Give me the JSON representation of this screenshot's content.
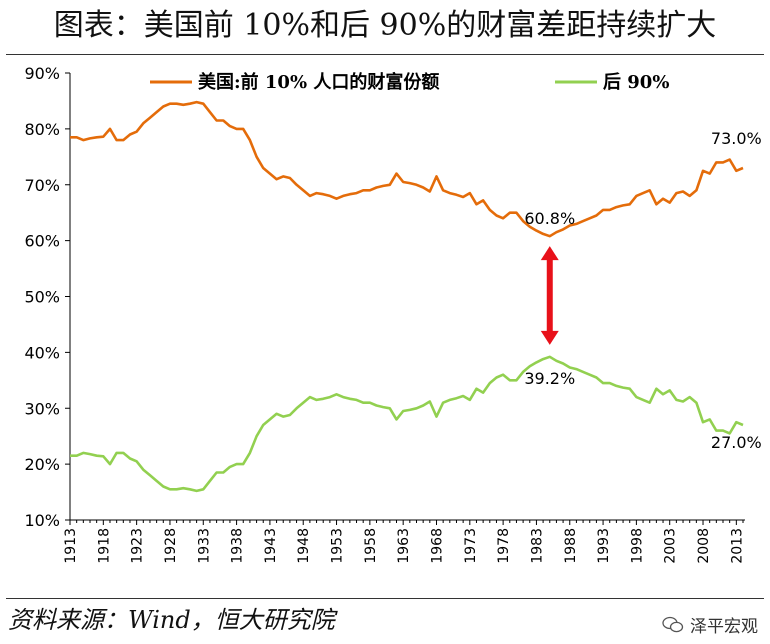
{
  "title": "图表：美国前 10%和后 90%的财富差距持续扩大",
  "source": "资料来源：Wind，恒大研究院",
  "watermark": "泽平宏观",
  "colors": {
    "top10": "#E46C0A",
    "bottom90": "#92D050",
    "arrow": "#E8111A"
  },
  "chart_data": {
    "type": "line",
    "ylim": [
      0.1,
      0.9
    ],
    "y_ticks": [
      "90%",
      "80%",
      "70%",
      "60%",
      "50%",
      "40%",
      "30%",
      "20%",
      "10%"
    ],
    "xlim": [
      1913,
      2014
    ],
    "x_ticks": [
      "1913",
      "1918",
      "1923",
      "1928",
      "1933",
      "1938",
      "1943",
      "1948",
      "1953",
      "1958",
      "1963",
      "1968",
      "1973",
      "1978",
      "1983",
      "1988",
      "1993",
      "1998",
      "2003",
      "2008",
      "2013"
    ],
    "legend_position": "top",
    "series": [
      {
        "name": "美国:前 10% 人口的财富份额",
        "color": "#E46C0A",
        "points": [
          [
            1913,
            0.785
          ],
          [
            1914,
            0.785
          ],
          [
            1915,
            0.78
          ],
          [
            1916,
            0.783
          ],
          [
            1917,
            0.785
          ],
          [
            1918,
            0.786
          ],
          [
            1919,
            0.8
          ],
          [
            1920,
            0.78
          ],
          [
            1921,
            0.78
          ],
          [
            1922,
            0.79
          ],
          [
            1923,
            0.795
          ],
          [
            1924,
            0.81
          ],
          [
            1925,
            0.82
          ],
          [
            1926,
            0.83
          ],
          [
            1927,
            0.84
          ],
          [
            1928,
            0.845
          ],
          [
            1929,
            0.845
          ],
          [
            1930,
            0.843
          ],
          [
            1931,
            0.845
          ],
          [
            1932,
            0.848
          ],
          [
            1933,
            0.845
          ],
          [
            1934,
            0.83
          ],
          [
            1935,
            0.815
          ],
          [
            1936,
            0.815
          ],
          [
            1937,
            0.805
          ],
          [
            1938,
            0.8
          ],
          [
            1939,
            0.8
          ],
          [
            1940,
            0.78
          ],
          [
            1941,
            0.75
          ],
          [
            1942,
            0.73
          ],
          [
            1943,
            0.72
          ],
          [
            1944,
            0.71
          ],
          [
            1945,
            0.715
          ],
          [
            1946,
            0.712
          ],
          [
            1947,
            0.7
          ],
          [
            1948,
            0.69
          ],
          [
            1949,
            0.68
          ],
          [
            1950,
            0.685
          ],
          [
            1951,
            0.683
          ],
          [
            1952,
            0.68
          ],
          [
            1953,
            0.675
          ],
          [
            1954,
            0.68
          ],
          [
            1955,
            0.683
          ],
          [
            1956,
            0.685
          ],
          [
            1957,
            0.69
          ],
          [
            1958,
            0.69
          ],
          [
            1959,
            0.695
          ],
          [
            1960,
            0.698
          ],
          [
            1961,
            0.7
          ],
          [
            1962,
            0.72
          ],
          [
            1963,
            0.705
          ],
          [
            1964,
            0.703
          ],
          [
            1965,
            0.7
          ],
          [
            1966,
            0.695
          ],
          [
            1967,
            0.688
          ],
          [
            1968,
            0.715
          ],
          [
            1969,
            0.69
          ],
          [
            1970,
            0.685
          ],
          [
            1971,
            0.682
          ],
          [
            1972,
            0.678
          ],
          [
            1973,
            0.685
          ],
          [
            1974,
            0.665
          ],
          [
            1975,
            0.672
          ],
          [
            1976,
            0.655
          ],
          [
            1977,
            0.645
          ],
          [
            1978,
            0.64
          ],
          [
            1979,
            0.65
          ],
          [
            1980,
            0.65
          ],
          [
            1981,
            0.635
          ],
          [
            1982,
            0.625
          ],
          [
            1983,
            0.618
          ],
          [
            1984,
            0.612
          ],
          [
            1985,
            0.608
          ],
          [
            1986,
            0.615
          ],
          [
            1987,
            0.62
          ],
          [
            1988,
            0.627
          ],
          [
            1989,
            0.63
          ],
          [
            1990,
            0.635
          ],
          [
            1991,
            0.64
          ],
          [
            1992,
            0.645
          ],
          [
            1993,
            0.655
          ],
          [
            1994,
            0.655
          ],
          [
            1995,
            0.66
          ],
          [
            1996,
            0.663
          ],
          [
            1997,
            0.665
          ],
          [
            1998,
            0.68
          ],
          [
            1999,
            0.685
          ],
          [
            2000,
            0.69
          ],
          [
            2001,
            0.665
          ],
          [
            2002,
            0.675
          ],
          [
            2003,
            0.668
          ],
          [
            2004,
            0.685
          ],
          [
            2005,
            0.688
          ],
          [
            2006,
            0.68
          ],
          [
            2007,
            0.69
          ],
          [
            2008,
            0.725
          ],
          [
            2009,
            0.72
          ],
          [
            2010,
            0.74
          ],
          [
            2011,
            0.74
          ],
          [
            2012,
            0.745
          ],
          [
            2013,
            0.725
          ],
          [
            2014,
            0.73
          ]
        ]
      },
      {
        "name": "后 90%",
        "color": "#92D050",
        "points": [
          [
            1913,
            0.215
          ],
          [
            1914,
            0.215
          ],
          [
            1915,
            0.22
          ],
          [
            1916,
            0.218
          ],
          [
            1917,
            0.215
          ],
          [
            1918,
            0.214
          ],
          [
            1919,
            0.2
          ],
          [
            1920,
            0.22
          ],
          [
            1921,
            0.22
          ],
          [
            1922,
            0.21
          ],
          [
            1923,
            0.205
          ],
          [
            1924,
            0.19
          ],
          [
            1925,
            0.18
          ],
          [
            1926,
            0.17
          ],
          [
            1927,
            0.16
          ],
          [
            1928,
            0.155
          ],
          [
            1929,
            0.155
          ],
          [
            1930,
            0.157
          ],
          [
            1931,
            0.155
          ],
          [
            1932,
            0.152
          ],
          [
            1933,
            0.155
          ],
          [
            1934,
            0.17
          ],
          [
            1935,
            0.185
          ],
          [
            1936,
            0.185
          ],
          [
            1937,
            0.195
          ],
          [
            1938,
            0.2
          ],
          [
            1939,
            0.2
          ],
          [
            1940,
            0.22
          ],
          [
            1941,
            0.25
          ],
          [
            1942,
            0.27
          ],
          [
            1943,
            0.28
          ],
          [
            1944,
            0.29
          ],
          [
            1945,
            0.285
          ],
          [
            1946,
            0.288
          ],
          [
            1947,
            0.3
          ],
          [
            1948,
            0.31
          ],
          [
            1949,
            0.32
          ],
          [
            1950,
            0.315
          ],
          [
            1951,
            0.317
          ],
          [
            1952,
            0.32
          ],
          [
            1953,
            0.325
          ],
          [
            1954,
            0.32
          ],
          [
            1955,
            0.317
          ],
          [
            1956,
            0.315
          ],
          [
            1957,
            0.31
          ],
          [
            1958,
            0.31
          ],
          [
            1959,
            0.305
          ],
          [
            1960,
            0.302
          ],
          [
            1961,
            0.3
          ],
          [
            1962,
            0.28
          ],
          [
            1963,
            0.295
          ],
          [
            1964,
            0.297
          ],
          [
            1965,
            0.3
          ],
          [
            1966,
            0.305
          ],
          [
            1967,
            0.312
          ],
          [
            1968,
            0.285
          ],
          [
            1969,
            0.31
          ],
          [
            1970,
            0.315
          ],
          [
            1971,
            0.318
          ],
          [
            1972,
            0.322
          ],
          [
            1973,
            0.315
          ],
          [
            1974,
            0.335
          ],
          [
            1975,
            0.328
          ],
          [
            1976,
            0.345
          ],
          [
            1977,
            0.355
          ],
          [
            1978,
            0.36
          ],
          [
            1979,
            0.35
          ],
          [
            1980,
            0.35
          ],
          [
            1981,
            0.365
          ],
          [
            1982,
            0.375
          ],
          [
            1983,
            0.382
          ],
          [
            1984,
            0.388
          ],
          [
            1985,
            0.392
          ],
          [
            1986,
            0.385
          ],
          [
            1987,
            0.38
          ],
          [
            1988,
            0.373
          ],
          [
            1989,
            0.37
          ],
          [
            1990,
            0.365
          ],
          [
            1991,
            0.36
          ],
          [
            1992,
            0.355
          ],
          [
            1993,
            0.345
          ],
          [
            1994,
            0.345
          ],
          [
            1995,
            0.34
          ],
          [
            1996,
            0.337
          ],
          [
            1997,
            0.335
          ],
          [
            1998,
            0.32
          ],
          [
            1999,
            0.315
          ],
          [
            2000,
            0.31
          ],
          [
            2001,
            0.335
          ],
          [
            2002,
            0.325
          ],
          [
            2003,
            0.332
          ],
          [
            2004,
            0.315
          ],
          [
            2005,
            0.312
          ],
          [
            2006,
            0.32
          ],
          [
            2007,
            0.31
          ],
          [
            2008,
            0.275
          ],
          [
            2009,
            0.28
          ],
          [
            2010,
            0.26
          ],
          [
            2011,
            0.26
          ],
          [
            2012,
            0.255
          ],
          [
            2013,
            0.275
          ],
          [
            2014,
            0.27
          ]
        ]
      }
    ],
    "annotations": [
      {
        "text": "73.0%",
        "x": 2013,
        "y": 0.73,
        "series": 0
      },
      {
        "text": "60.8%",
        "x": 1985,
        "y": 0.608,
        "series": 0
      },
      {
        "text": "39.2%",
        "x": 1985,
        "y": 0.392,
        "series": 1
      },
      {
        "text": "27.0%",
        "x": 2013,
        "y": 0.27,
        "series": 1
      }
    ],
    "gap_arrow": {
      "x": 1985,
      "from": 0.392,
      "to": 0.608
    }
  }
}
